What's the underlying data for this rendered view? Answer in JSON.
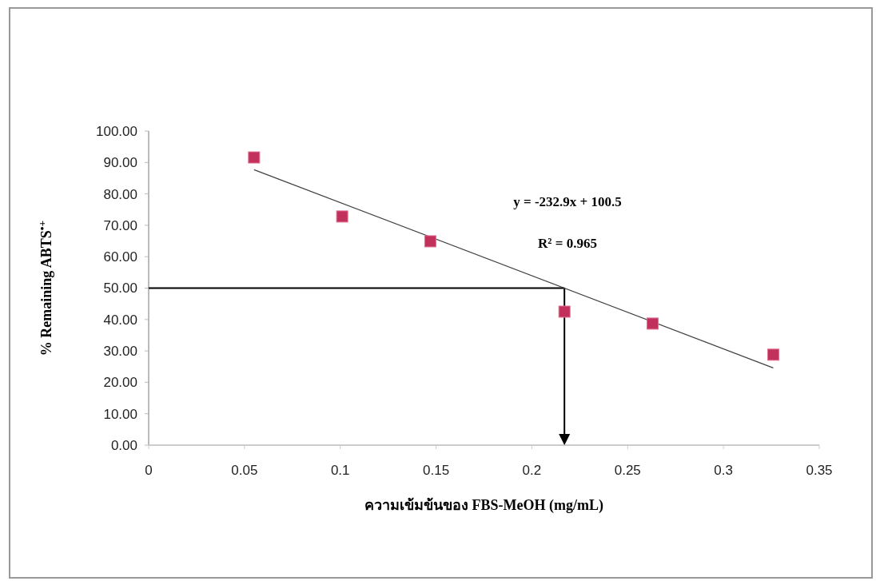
{
  "chart_data": {
    "type": "scatter",
    "xlabel": "ความเข้มข้นของ FBS-MeOH  (mg/mL)",
    "ylabel": "% Remaining ABTS$^{•+}$",
    "annotations": [
      "y = -232.9x + 100.5",
      "R² = 0.965"
    ],
    "xlim": [
      0,
      0.35
    ],
    "xticks": [
      0,
      {
        "value": 0.05,
        "label": "0.05"
      },
      {
        "value": 0.1,
        "label": "0.1"
      },
      {
        "value": 0.15,
        "label": "0.15"
      },
      {
        "value": 0.2,
        "label": "0.2"
      },
      {
        "value": 0.25,
        "label": "0.25"
      },
      {
        "value": 0.3,
        "label": "0.3"
      },
      {
        "value": 0.35,
        "label": "0.35"
      }
    ],
    "ylim": [
      0,
      100
    ],
    "yticks": [
      {
        "value": 0,
        "label": "0.00"
      },
      {
        "value": 10,
        "label": "10.00"
      },
      {
        "value": 20,
        "label": "20.00"
      },
      {
        "value": 30,
        "label": "30.00"
      },
      {
        "value": 40,
        "label": "40.00"
      },
      {
        "value": 50,
        "label": "50.00"
      },
      {
        "value": 60,
        "label": "60.00"
      },
      {
        "value": 70,
        "label": "70.00"
      },
      {
        "value": 80,
        "label": "80.00"
      },
      {
        "value": 90,
        "label": "90.00"
      },
      {
        "value": 100,
        "label": "100.00"
      }
    ],
    "grid": false,
    "marker": "square",
    "ref_lines": [
      {
        "axis": "y",
        "value": 50,
        "color": "#000000"
      },
      {
        "axis": "x",
        "value": 0.217,
        "color": "#000000"
      }
    ],
    "series": [
      {
        "type": "line",
        "color": "#404040",
        "x": [
          0.055,
          0.326
        ],
        "values": [
          87.7,
          24.6
        ],
        "marker": "none"
      },
      {
        "color": "#c2305c",
        "x": [
          0.055,
          0.101,
          0.147,
          0.217,
          0.263,
          0.326
        ],
        "values": [
          91.6,
          72.8,
          64.9,
          42.5,
          38.7,
          28.8
        ]
      }
    ]
  }
}
